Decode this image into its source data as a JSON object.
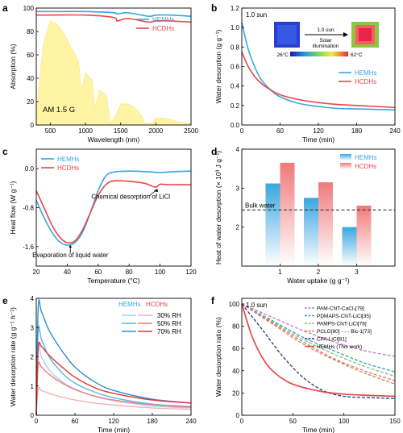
{
  "panels": {
    "a": {
      "letter": "a"
    },
    "b": {
      "letter": "b"
    },
    "c": {
      "letter": "c"
    },
    "d": {
      "letter": "d"
    },
    "e": {
      "letter": "e"
    },
    "f": {
      "letter": "f"
    }
  },
  "colors": {
    "blue": "#3aa6e0",
    "red": "#e8474a",
    "solar": "#fff39a",
    "dashed_ref": "#222222"
  },
  "chart_data": [
    {
      "id": "a",
      "type": "line",
      "xlabel": "Wavelength (nm)",
      "ylabel": "Absorption (%)",
      "xlim": [
        300,
        2500
      ],
      "ylim": [
        0,
        100
      ],
      "xticks": [
        500,
        1000,
        1500,
        2000,
        2500
      ],
      "yticks": [
        0,
        20,
        40,
        60,
        80,
        100
      ],
      "annotation": "AM 1.5 G",
      "legend": [
        "HEMHs",
        "HCDHs"
      ],
      "series": [
        {
          "name": "HEMHs",
          "x": [
            300,
            500,
            1000,
            1400,
            1450,
            1600,
            1900,
            2000,
            2200,
            2500
          ],
          "values": [
            97,
            97,
            97,
            96,
            95,
            96,
            93,
            94,
            94,
            93
          ]
        },
        {
          "name": "HCDHs",
          "x": [
            300,
            500,
            1000,
            1400,
            1450,
            1600,
            1900,
            2000,
            2200,
            2500
          ],
          "values": [
            94,
            94,
            94,
            92,
            89,
            91,
            88,
            89,
            89,
            88
          ]
        }
      ],
      "solar_spectrum": {
        "x": [
          300,
          400,
          500,
          600,
          700,
          800,
          900,
          940,
          1000,
          1100,
          1130,
          1200,
          1300,
          1350,
          1400,
          1500,
          1600,
          1700,
          1800,
          1850,
          1950,
          2000,
          2100,
          2200,
          2300,
          2400,
          2500
        ],
        "values": [
          10,
          70,
          89,
          86,
          78,
          66,
          55,
          30,
          45,
          38,
          14,
          30,
          25,
          2,
          5,
          18,
          18,
          15,
          8,
          1,
          2,
          6,
          6,
          5,
          3,
          2,
          1
        ]
      }
    },
    {
      "id": "b",
      "type": "line",
      "xlabel": "Time (min)",
      "ylabel": "Water desorption (g g⁻¹)",
      "xlim": [
        0,
        240
      ],
      "ylim": [
        0,
        1.2
      ],
      "xticks": [
        0,
        60,
        120,
        180,
        240
      ],
      "yticks": [
        0,
        0.2,
        0.4,
        0.6,
        0.8,
        1.0,
        1.2
      ],
      "annotation": "1.0 sun",
      "inset": {
        "arrow_label_top": "1.0 sun",
        "arrow_label_bottom": "Solar illumination",
        "scale_min": "26°C",
        "scale_max": "62°C"
      },
      "legend": [
        "HEMHs",
        "HCDHs"
      ],
      "series": [
        {
          "name": "HEMHs",
          "x": [
            0,
            10,
            20,
            30,
            45,
            60,
            90,
            120,
            150,
            180,
            210,
            240
          ],
          "values": [
            1.05,
            0.78,
            0.6,
            0.47,
            0.36,
            0.29,
            0.22,
            0.19,
            0.17,
            0.165,
            0.16,
            0.155
          ]
        },
        {
          "name": "HCDHs",
          "x": [
            0,
            10,
            20,
            30,
            45,
            60,
            90,
            120,
            150,
            180,
            210,
            240
          ],
          "values": [
            0.75,
            0.6,
            0.5,
            0.43,
            0.36,
            0.31,
            0.26,
            0.23,
            0.21,
            0.2,
            0.19,
            0.18
          ]
        }
      ]
    },
    {
      "id": "c",
      "type": "line",
      "xlabel": "Temperature (°C)",
      "ylabel": "Heat flow (W g⁻¹)",
      "xlim": [
        20,
        120
      ],
      "ylim": [
        -2.0,
        0.4
      ],
      "xticks": [
        20,
        40,
        60,
        80,
        100,
        120
      ],
      "yticks": [
        0.0,
        -0.8,
        -1.6
      ],
      "ytick_labels": [
        "0.0",
        "-0.8",
        "-1.6"
      ],
      "annotations": [
        "Chemical desorption of LiCl",
        "Evaporation of liquid water"
      ],
      "legend": [
        "HEMHs",
        "HCDHs"
      ],
      "series": [
        {
          "name": "HEMHs",
          "x": [
            20,
            25,
            30,
            35,
            40,
            45,
            50,
            55,
            60,
            65,
            70,
            80,
            90,
            100,
            110,
            120
          ],
          "values": [
            -0.65,
            -1.0,
            -1.3,
            -1.5,
            -1.57,
            -1.52,
            -1.3,
            -0.9,
            -0.45,
            -0.15,
            -0.07,
            -0.05,
            -0.06,
            -0.08,
            -0.06,
            -0.05
          ]
        },
        {
          "name": "HCDHs",
          "x": [
            20,
            25,
            30,
            35,
            40,
            45,
            50,
            55,
            60,
            65,
            70,
            80,
            90,
            97,
            100,
            105,
            110,
            120
          ],
          "values": [
            -0.45,
            -0.8,
            -1.15,
            -1.4,
            -1.52,
            -1.48,
            -1.25,
            -0.9,
            -0.55,
            -0.33,
            -0.25,
            -0.26,
            -0.3,
            -0.38,
            -0.32,
            -0.33,
            -0.33,
            -0.33
          ]
        }
      ]
    },
    {
      "id": "d",
      "type": "bar",
      "xlabel": "Water uptake (g g⁻¹)",
      "ylabel": "Heat of water desorption (× 10³ J g⁻¹)",
      "categories": [
        "1",
        "2",
        "3"
      ],
      "ylim": [
        1.0,
        4.0
      ],
      "yticks": [
        2,
        3,
        4
      ],
      "reference_line": {
        "label": "Bulk water",
        "value": 2.44
      },
      "legend": [
        "HEMHs",
        "HCDHs"
      ],
      "series": [
        {
          "name": "HEMHs",
          "values": [
            3.12,
            2.75,
            2.0
          ]
        },
        {
          "name": "HCDHs",
          "values": [
            3.65,
            3.15,
            2.55
          ]
        }
      ]
    },
    {
      "id": "e",
      "type": "line",
      "xlabel": "Time (min)",
      "ylabel": "Water desorption rate (g g⁻¹ h⁻¹)",
      "xlim": [
        0,
        240
      ],
      "ylim": [
        0,
        4
      ],
      "xticks": [
        0,
        60,
        120,
        180,
        240
      ],
      "yticks": [
        0,
        1,
        2,
        3,
        4
      ],
      "legend_headers": [
        "HEMHs",
        "HCDHs"
      ],
      "legend": [
        "30% RH",
        "50% RH",
        "70% RH"
      ],
      "series": [
        {
          "name": "HEMHs 30% RH",
          "color": "#9fd3ef",
          "x": [
            0,
            3,
            8,
            20,
            40,
            60,
            90,
            120,
            180,
            240
          ],
          "values": [
            0,
            2.3,
            2.0,
            1.55,
            1.15,
            0.9,
            0.65,
            0.5,
            0.32,
            0.25
          ]
        },
        {
          "name": "HEMHs 50% RH",
          "color": "#5ab6e6",
          "x": [
            0,
            3,
            8,
            20,
            40,
            60,
            90,
            120,
            180,
            240
          ],
          "values": [
            0,
            2.9,
            2.6,
            2.0,
            1.45,
            1.1,
            0.8,
            0.6,
            0.38,
            0.3
          ]
        },
        {
          "name": "HEMHs 70% RH",
          "color": "#2b8fd4",
          "x": [
            0,
            3,
            8,
            20,
            40,
            60,
            90,
            120,
            180,
            240
          ],
          "values": [
            0,
            3.7,
            3.55,
            2.9,
            2.2,
            1.65,
            1.15,
            0.85,
            0.55,
            0.42
          ]
        },
        {
          "name": "HCDHs 30% RH",
          "color": "#f3b3b3",
          "x": [
            0,
            3,
            8,
            20,
            40,
            60,
            90,
            120,
            180,
            240
          ],
          "values": [
            0,
            0.9,
            0.85,
            0.75,
            0.62,
            0.52,
            0.42,
            0.35,
            0.25,
            0.2
          ]
        },
        {
          "name": "HCDHs 50% RH",
          "color": "#ec7f80",
          "x": [
            0,
            3,
            8,
            20,
            40,
            60,
            90,
            120,
            180,
            240
          ],
          "values": [
            0,
            1.7,
            1.65,
            1.4,
            1.1,
            0.88,
            0.66,
            0.52,
            0.36,
            0.28
          ]
        },
        {
          "name": "HCDHs 70% RH",
          "color": "#e0373a",
          "x": [
            0,
            3,
            8,
            20,
            40,
            60,
            90,
            120,
            180,
            240
          ],
          "values": [
            0,
            2.3,
            2.35,
            2.05,
            1.65,
            1.3,
            0.95,
            0.75,
            0.52,
            0.42
          ]
        }
      ]
    },
    {
      "id": "f",
      "type": "line",
      "xlabel": "Time (min)",
      "ylabel": "Water desorption ratio (%)",
      "xlim": [
        0,
        150
      ],
      "ylim": [
        0,
        105
      ],
      "xticks": [
        0,
        50,
        100,
        150
      ],
      "yticks": [
        0,
        20,
        40,
        60,
        80,
        100
      ],
      "annotation": "1.0 sun",
      "legend": [
        "PAM-CNT-CaCl₂[79]",
        "PDMAPS-CNT-LiCl[35]",
        "PAMPS-CNT-LiCl[78]",
        "PCLG[80] - - - Bic-1[73]",
        "CFA-LiCl[81]",
        "HEMHs (This work)"
      ],
      "series": [
        {
          "name": "PAM-CNT-CaCl₂[79]",
          "color": "#c87ad0",
          "dash": "4,2",
          "x": [
            0,
            30,
            60,
            90,
            120,
            150
          ],
          "values": [
            100,
            88,
            76,
            66,
            58,
            53
          ]
        },
        {
          "name": "PDMAPS-CNT-LiCl[35]",
          "color": "#3aa0b8",
          "dash": "4,2",
          "x": [
            0,
            30,
            60,
            90,
            120,
            150
          ],
          "values": [
            100,
            85,
            70,
            58,
            47,
            39
          ]
        },
        {
          "name": "PAMPS-CNT-LiCl[78]",
          "color": "#7cc96a",
          "dash": "4,2",
          "x": [
            0,
            30,
            60,
            90,
            120,
            150
          ],
          "values": [
            100,
            84,
            68,
            55,
            44,
            35
          ]
        },
        {
          "name": "PCLG[80]",
          "color": "#e58a2b",
          "dash": "4,2",
          "x": [
            0,
            30,
            60,
            90,
            120,
            150
          ],
          "values": [
            100,
            82,
            64,
            50,
            38,
            28
          ]
        },
        {
          "name": "Bic-1[73]",
          "color": "#e06aa6",
          "dash": "4,2",
          "x": [
            0,
            30,
            60,
            90,
            120,
            150
          ],
          "values": [
            100,
            83,
            66,
            51,
            40,
            31
          ]
        },
        {
          "name": "CFA-LiCl[81]",
          "color": "#1f3c88",
          "dash": "4,2",
          "x": [
            0,
            20,
            40,
            60,
            80,
            100,
            120,
            150
          ],
          "values": [
            100,
            77,
            53,
            34,
            22,
            17,
            16,
            15
          ]
        },
        {
          "name": "HEMHs (This work)",
          "color": "#e8474a",
          "dash": "",
          "x": [
            0,
            10,
            20,
            30,
            45,
            60,
            80,
            100,
            120,
            150
          ],
          "values": [
            100,
            71,
            52,
            40,
            30,
            25,
            21,
            19,
            18,
            17
          ]
        }
      ]
    }
  ]
}
